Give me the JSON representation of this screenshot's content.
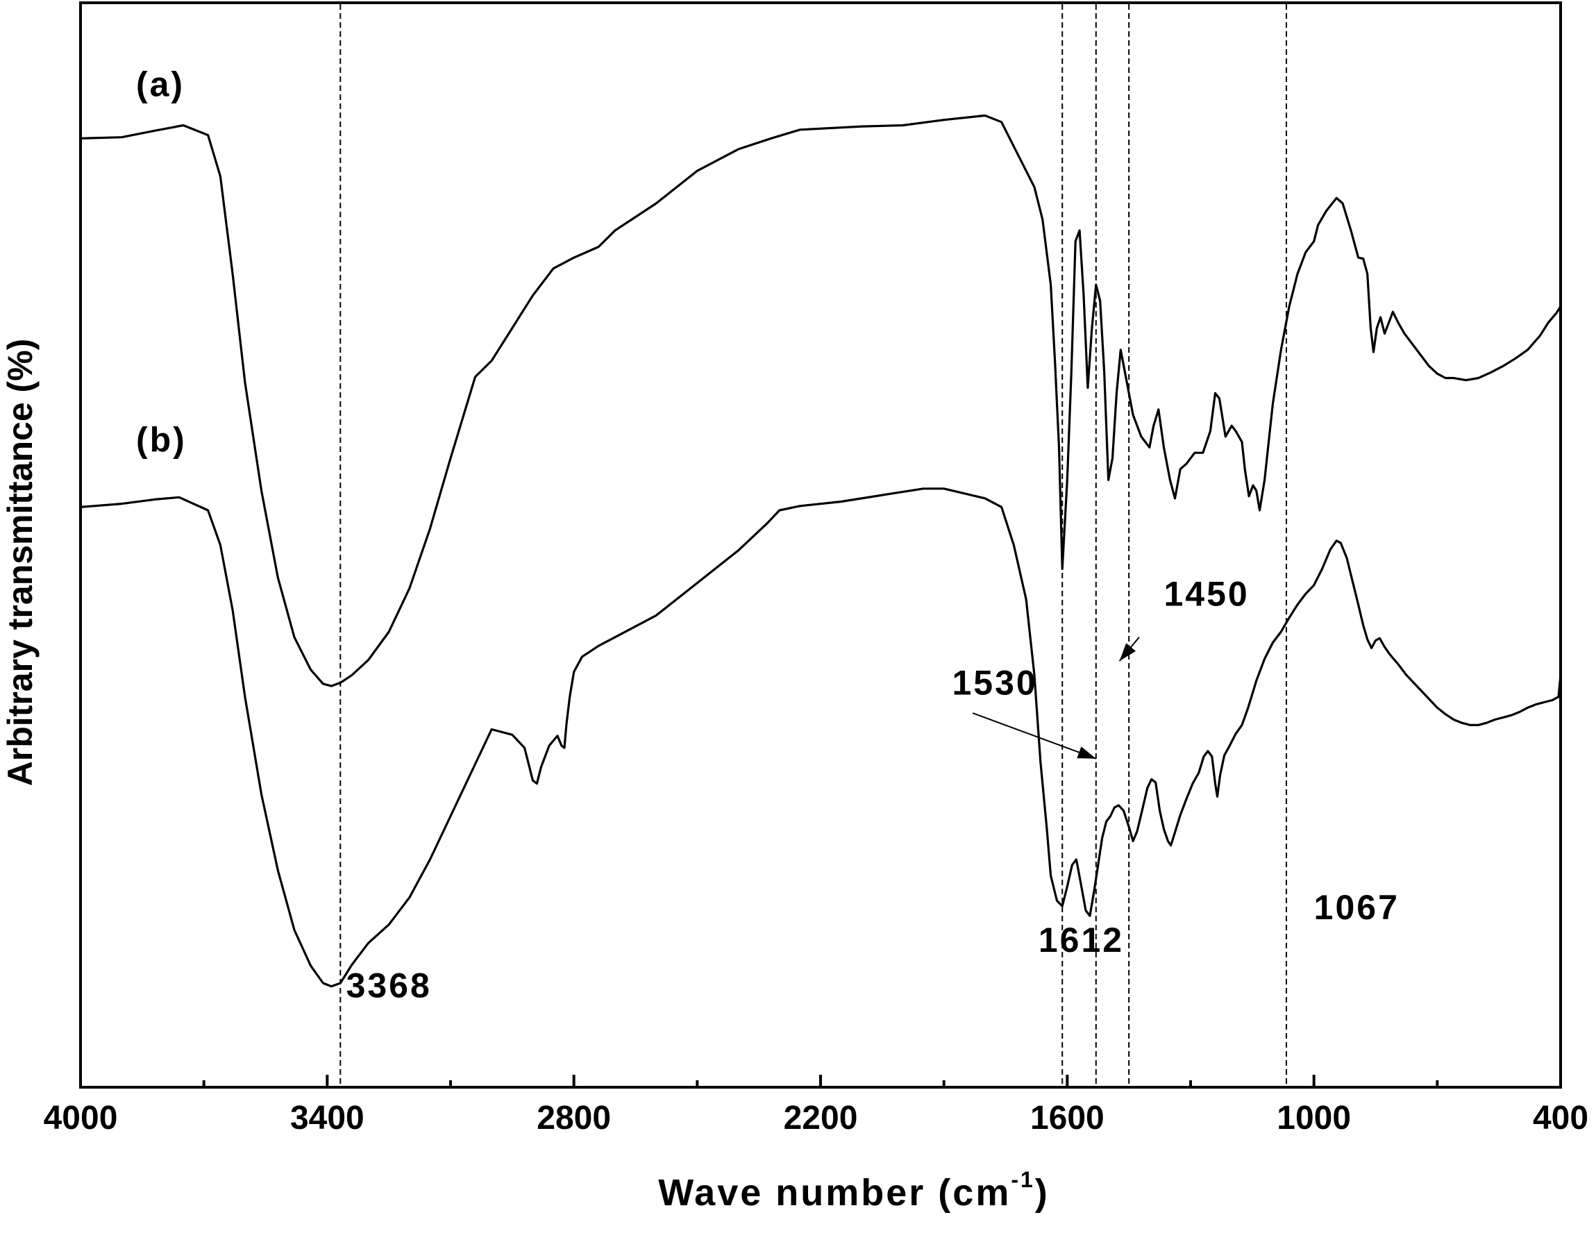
{
  "chart_data": {
    "type": "line",
    "title": "",
    "xlabel": "Wave number (cm",
    "xlabel_sup": "-1",
    "xlabel_close": ")",
    "ylabel": "Arbitrary transmittance (%)",
    "xlim": [
      4000,
      400
    ],
    "x_reversed": true,
    "ylim": [
      0,
      100
    ],
    "y_ticks_shown": false,
    "grid": false,
    "legend": "none",
    "xticks": [
      4000,
      3400,
      2800,
      2200,
      1600,
      1000,
      400
    ],
    "xtick_labels": [
      "4000",
      "3400",
      "2800",
      "2200",
      "1600",
      "1000",
      "400"
    ],
    "reference_lines": [
      3368,
      1612,
      1530,
      1450,
      1067
    ],
    "series": [
      {
        "name": "(a)",
        "color": "#000000",
        "points": [
          [
            4000,
            87.5
          ],
          [
            3900,
            87.6
          ],
          [
            3820,
            88.2
          ],
          [
            3750,
            88.7
          ],
          [
            3690,
            87.8
          ],
          [
            3660,
            84
          ],
          [
            3630,
            75
          ],
          [
            3600,
            65
          ],
          [
            3560,
            55
          ],
          [
            3520,
            47
          ],
          [
            3480,
            41.5
          ],
          [
            3440,
            38.5
          ],
          [
            3410,
            37.2
          ],
          [
            3390,
            37
          ],
          [
            3368,
            37.3
          ],
          [
            3340,
            38
          ],
          [
            3300,
            39.4
          ],
          [
            3250,
            42
          ],
          [
            3200,
            46
          ],
          [
            3150,
            51.5
          ],
          [
            3100,
            58
          ],
          [
            3060,
            63
          ],
          [
            3040,
            65.5
          ],
          [
            3000,
            67
          ],
          [
            2950,
            70
          ],
          [
            2900,
            73
          ],
          [
            2850,
            75.5
          ],
          [
            2800,
            76.5
          ],
          [
            2740,
            77.5
          ],
          [
            2700,
            79
          ],
          [
            2600,
            81.5
          ],
          [
            2500,
            84.5
          ],
          [
            2400,
            86.5
          ],
          [
            2320,
            87.5
          ],
          [
            2250,
            88.3
          ],
          [
            2100,
            88.6
          ],
          [
            2000,
            88.7
          ],
          [
            1900,
            89.2
          ],
          [
            1800,
            89.6
          ],
          [
            1760,
            89
          ],
          [
            1720,
            86
          ],
          [
            1680,
            83
          ],
          [
            1660,
            80
          ],
          [
            1640,
            74
          ],
          [
            1630,
            67
          ],
          [
            1620,
            59
          ],
          [
            1612,
            47.8
          ],
          [
            1600,
            56
          ],
          [
            1590,
            66
          ],
          [
            1580,
            78
          ],
          [
            1570,
            79
          ],
          [
            1560,
            73
          ],
          [
            1550,
            64.5
          ],
          [
            1540,
            70
          ],
          [
            1530,
            74
          ],
          [
            1520,
            72.5
          ],
          [
            1510,
            66
          ],
          [
            1500,
            56
          ],
          [
            1490,
            58
          ],
          [
            1480,
            64
          ],
          [
            1470,
            68
          ],
          [
            1455,
            65
          ],
          [
            1440,
            62
          ],
          [
            1420,
            60
          ],
          [
            1400,
            59
          ],
          [
            1390,
            61
          ],
          [
            1378,
            62.5
          ],
          [
            1365,
            59
          ],
          [
            1350,
            56
          ],
          [
            1338,
            54.3
          ],
          [
            1325,
            57
          ],
          [
            1310,
            57.5
          ],
          [
            1290,
            58.5
          ],
          [
            1270,
            58.5
          ],
          [
            1252,
            60.5
          ],
          [
            1240,
            64
          ],
          [
            1230,
            63.5
          ],
          [
            1215,
            60
          ],
          [
            1200,
            61
          ],
          [
            1190,
            60.5
          ],
          [
            1175,
            59.5
          ],
          [
            1168,
            57
          ],
          [
            1158,
            54.5
          ],
          [
            1148,
            55.5
          ],
          [
            1140,
            55
          ],
          [
            1132,
            53.2
          ],
          [
            1120,
            56
          ],
          [
            1100,
            63
          ],
          [
            1080,
            68
          ],
          [
            1060,
            72
          ],
          [
            1040,
            75
          ],
          [
            1020,
            77
          ],
          [
            1000,
            78
          ],
          [
            990,
            79.5
          ],
          [
            970,
            80.8
          ],
          [
            945,
            82
          ],
          [
            930,
            81.5
          ],
          [
            910,
            79
          ],
          [
            892,
            76.5
          ],
          [
            880,
            76.4
          ],
          [
            870,
            75
          ],
          [
            862,
            70
          ],
          [
            855,
            67.8
          ],
          [
            847,
            70
          ],
          [
            838,
            71
          ],
          [
            828,
            69.5
          ],
          [
            818,
            70.5
          ],
          [
            808,
            71.5
          ],
          [
            795,
            70.5
          ],
          [
            780,
            69.5
          ],
          [
            760,
            68.5
          ],
          [
            740,
            67.5
          ],
          [
            720,
            66.5
          ],
          [
            700,
            65.8
          ],
          [
            680,
            65.4
          ],
          [
            660,
            65.4
          ],
          [
            630,
            65.2
          ],
          [
            600,
            65.4
          ],
          [
            570,
            65.9
          ],
          [
            540,
            66.5
          ],
          [
            510,
            67.2
          ],
          [
            480,
            68
          ],
          [
            450,
            69.3
          ],
          [
            430,
            70.5
          ],
          [
            410,
            71.4
          ],
          [
            400,
            72
          ]
        ]
      },
      {
        "name": "(b)",
        "color": "#000000",
        "points": [
          [
            4000,
            53.5
          ],
          [
            3900,
            53.8
          ],
          [
            3820,
            54.2
          ],
          [
            3760,
            54.4
          ],
          [
            3690,
            53.2
          ],
          [
            3660,
            50
          ],
          [
            3630,
            44
          ],
          [
            3600,
            36
          ],
          [
            3560,
            27
          ],
          [
            3520,
            20
          ],
          [
            3480,
            14.5
          ],
          [
            3440,
            11.2
          ],
          [
            3410,
            9.6
          ],
          [
            3390,
            9.3
          ],
          [
            3368,
            9.6
          ],
          [
            3340,
            11.3
          ],
          [
            3300,
            13.3
          ],
          [
            3250,
            15
          ],
          [
            3200,
            17.5
          ],
          [
            3150,
            21
          ],
          [
            3100,
            25
          ],
          [
            3050,
            29
          ],
          [
            3000,
            33
          ],
          [
            2950,
            32.5
          ],
          [
            2920,
            31.3
          ],
          [
            2910,
            29.8
          ],
          [
            2900,
            28.3
          ],
          [
            2890,
            28
          ],
          [
            2880,
            29.5
          ],
          [
            2860,
            31.5
          ],
          [
            2840,
            32.4
          ],
          [
            2830,
            31.5
          ],
          [
            2823,
            31.3
          ],
          [
            2818,
            33.5
          ],
          [
            2810,
            36
          ],
          [
            2800,
            38.3
          ],
          [
            2780,
            39.7
          ],
          [
            2740,
            40.7
          ],
          [
            2700,
            41.5
          ],
          [
            2600,
            43.5
          ],
          [
            2500,
            46.5
          ],
          [
            2400,
            49.5
          ],
          [
            2330,
            52
          ],
          [
            2300,
            53.2
          ],
          [
            2250,
            53.6
          ],
          [
            2150,
            54
          ],
          [
            2050,
            54.6
          ],
          [
            1950,
            55.2
          ],
          [
            1900,
            55.2
          ],
          [
            1800,
            54.3
          ],
          [
            1760,
            53.5
          ],
          [
            1730,
            50
          ],
          [
            1700,
            45
          ],
          [
            1680,
            38
          ],
          [
            1665,
            30
          ],
          [
            1650,
            24
          ],
          [
            1640,
            19.5
          ],
          [
            1625,
            17.2
          ],
          [
            1612,
            16.7
          ],
          [
            1600,
            18.5
          ],
          [
            1588,
            20.5
          ],
          [
            1578,
            21
          ],
          [
            1568,
            19
          ],
          [
            1555,
            16.3
          ],
          [
            1545,
            15.8
          ],
          [
            1535,
            18
          ],
          [
            1525,
            20.5
          ],
          [
            1515,
            23
          ],
          [
            1505,
            24.5
          ],
          [
            1495,
            25
          ],
          [
            1485,
            25.8
          ],
          [
            1475,
            26
          ],
          [
            1463,
            25.5
          ],
          [
            1450,
            24
          ],
          [
            1440,
            22.7
          ],
          [
            1430,
            23.6
          ],
          [
            1418,
            25.5
          ],
          [
            1405,
            27.6
          ],
          [
            1395,
            28.4
          ],
          [
            1385,
            28.1
          ],
          [
            1375,
            25.5
          ],
          [
            1365,
            23.8
          ],
          [
            1355,
            22.7
          ],
          [
            1348,
            22.3
          ],
          [
            1338,
            23.5
          ],
          [
            1325,
            25.1
          ],
          [
            1310,
            26.6
          ],
          [
            1295,
            28
          ],
          [
            1280,
            29
          ],
          [
            1268,
            30.5
          ],
          [
            1258,
            31
          ],
          [
            1248,
            30.5
          ],
          [
            1240,
            28
          ],
          [
            1235,
            26.8
          ],
          [
            1228,
            28.8
          ],
          [
            1218,
            30.6
          ],
          [
            1205,
            31.5
          ],
          [
            1190,
            32.6
          ],
          [
            1175,
            33.4
          ],
          [
            1160,
            35
          ],
          [
            1140,
            37.5
          ],
          [
            1120,
            39.5
          ],
          [
            1100,
            41
          ],
          [
            1080,
            42
          ],
          [
            1060,
            43.3
          ],
          [
            1040,
            44.5
          ],
          [
            1020,
            45.5
          ],
          [
            1000,
            46.3
          ],
          [
            980,
            47.8
          ],
          [
            960,
            49.6
          ],
          [
            945,
            50.4
          ],
          [
            935,
            50.2
          ],
          [
            920,
            48.8
          ],
          [
            905,
            46.5
          ],
          [
            892,
            44.5
          ],
          [
            880,
            42.6
          ],
          [
            870,
            41.3
          ],
          [
            860,
            40.5
          ],
          [
            850,
            41.2
          ],
          [
            840,
            41.4
          ],
          [
            828,
            40.6
          ],
          [
            815,
            39.9
          ],
          [
            795,
            39
          ],
          [
            775,
            38
          ],
          [
            755,
            37.2
          ],
          [
            735,
            36.4
          ],
          [
            715,
            35.6
          ],
          [
            700,
            35
          ],
          [
            680,
            34.4
          ],
          [
            660,
            33.9
          ],
          [
            640,
            33.6
          ],
          [
            620,
            33.4
          ],
          [
            600,
            33.4
          ],
          [
            580,
            33.6
          ],
          [
            560,
            33.9
          ],
          [
            540,
            34.1
          ],
          [
            520,
            34.3
          ],
          [
            500,
            34.6
          ],
          [
            480,
            35
          ],
          [
            460,
            35.3
          ],
          [
            440,
            35.5
          ],
          [
            420,
            35.7
          ],
          [
            405,
            36
          ],
          [
            400,
            38
          ]
        ]
      }
    ],
    "annotations": [
      {
        "text": "(a)",
        "x": 3865,
        "y": 91.4
      },
      {
        "text": "(b)",
        "x": 3865,
        "y": 58.6
      },
      {
        "text": "3368",
        "x": 3354,
        "y": 8.3
      },
      {
        "text": "1612",
        "x": 1670,
        "y": 12.5
      },
      {
        "text": "1067",
        "x": 1000,
        "y": 15.5
      },
      {
        "text": "1450",
        "x": 1365,
        "y": 44.4
      },
      {
        "text": "1530",
        "x": 1880,
        "y": 36.2
      }
    ],
    "arrows": [
      {
        "from_x": 1830,
        "from_y": 34.5,
        "to_x": 1530,
        "to_y": 30.3
      },
      {
        "from_x": 1425,
        "from_y": 41.5,
        "to_x": 1473,
        "to_y": 39.3
      }
    ]
  }
}
